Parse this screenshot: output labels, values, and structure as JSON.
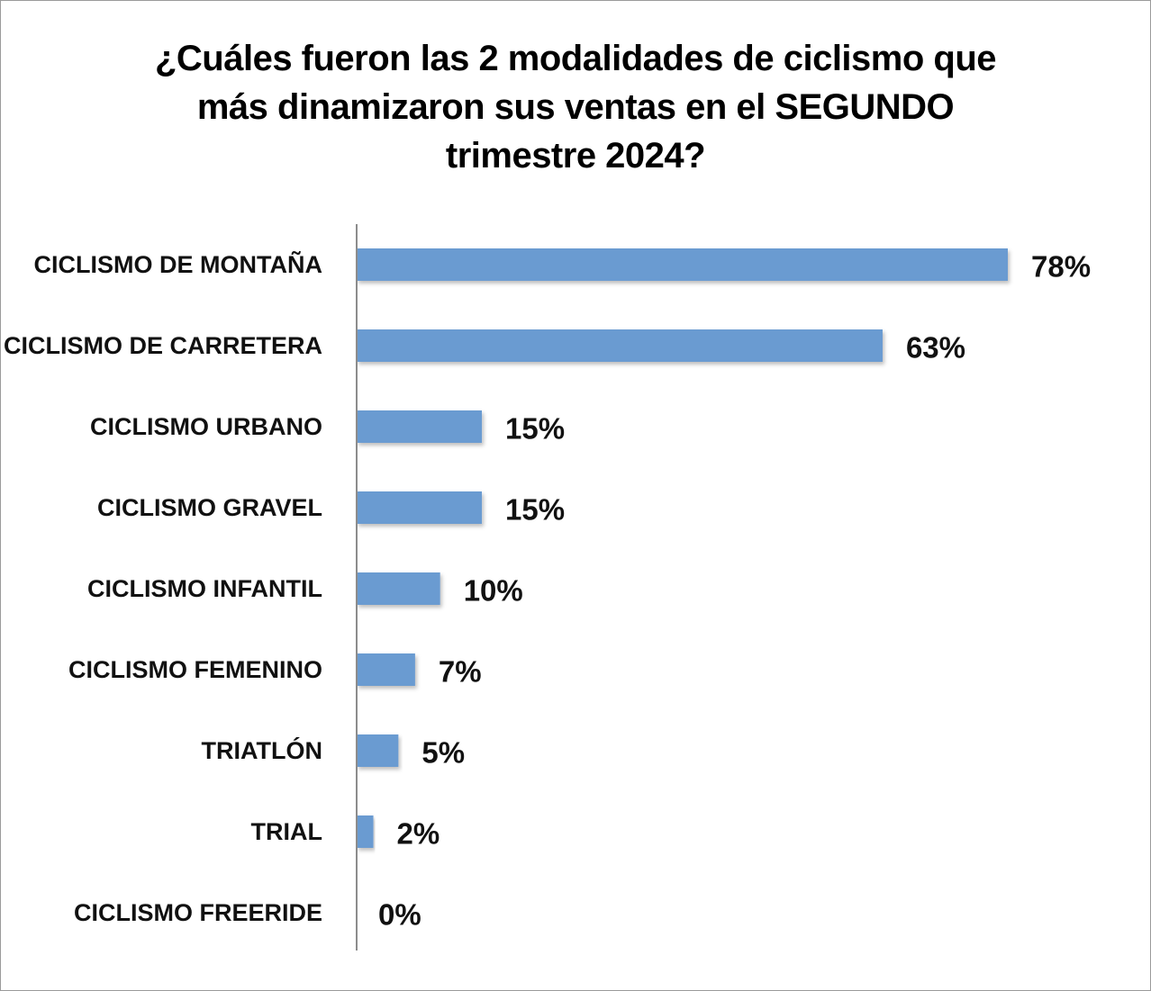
{
  "chart_data": {
    "type": "bar",
    "orientation": "horizontal",
    "title_lines": [
      "¿Cuáles fueron las 2 modalidades de ciclismo que",
      "más dinamizaron sus ventas en el SEGUNDO",
      "trimestre 2024?"
    ],
    "categories": [
      "CICLISMO DE MONTAÑA",
      "CICLISMO DE CARRETERA",
      "CICLISMO URBANO",
      "CICLISMO GRAVEL",
      "CICLISMO INFANTIL",
      "CICLISMO FEMENINO",
      "TRIATLÓN",
      "TRIAL",
      "CICLISMO FREERIDE"
    ],
    "values": [
      78,
      63,
      15,
      15,
      10,
      7,
      5,
      2,
      0
    ],
    "value_labels": [
      "78%",
      "63%",
      "15%",
      "15%",
      "10%",
      "7%",
      "5%",
      "2%",
      "0%"
    ],
    "unit": "%",
    "xlim": [
      0,
      100
    ],
    "grid": false,
    "legend": "none",
    "bar_color": "#6b9bd1"
  }
}
